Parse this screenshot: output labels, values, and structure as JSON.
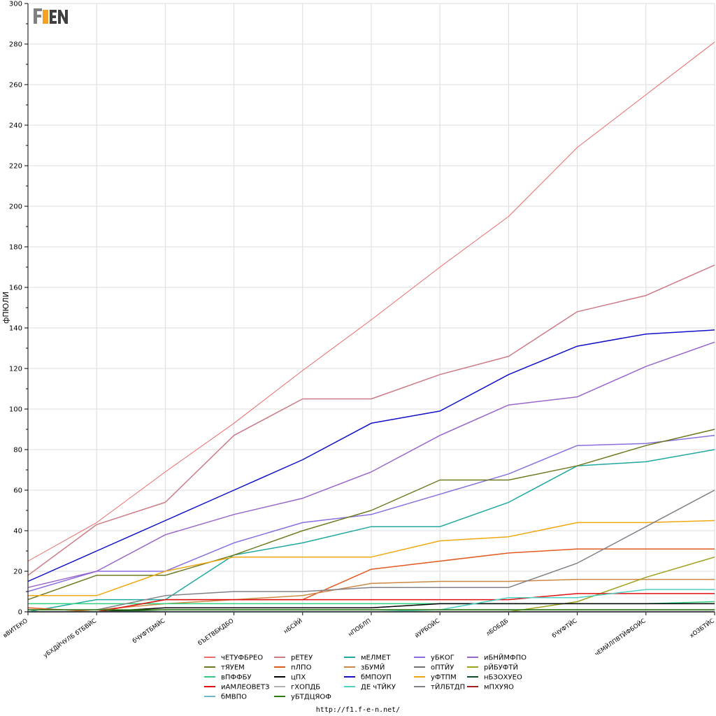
{
  "logo": {
    "text": "F1EN",
    "colors": [
      "#808080",
      "#f5a020",
      "#404040"
    ]
  },
  "footer": {
    "url": "http://f1.f-e-n.net/"
  },
  "chart_data": {
    "type": "line",
    "ylabel": "фПЮЛИ",
    "xlabel": "",
    "title": "",
    "ylim": [
      0,
      300
    ],
    "yticks": [
      0,
      20,
      40,
      60,
      80,
      100,
      120,
      140,
      160,
      180,
      200,
      220,
      240,
      260,
      280,
      300
    ],
    "grid": true,
    "legend_position": "bottom",
    "categories": [
      "вВИТЕКО",
      "уБХДЙЧУЛБ бТБВЙС",
      "бЧУФТБМЙС",
      "бЪЕТВБКДБО",
      "нБСЙЙ",
      "нПОБЛП",
      "йУРБОЙС",
      "лБОБДБ",
      "бЧУФТЙС",
      "чЕМЙЛПВТЙФБОЙС",
      "хОЗБТЙС"
    ],
    "series": [
      {
        "name": "чЕТУФБРЕО",
        "color": "#e86b6b",
        "width": 1,
        "values": [
          25,
          44,
          69,
          93,
          119,
          144,
          170,
          195,
          229,
          255,
          281
        ]
      },
      {
        "name": "рЕТЕУ",
        "color": "#cc7a86",
        "width": 1.5,
        "values": [
          18,
          43,
          54,
          87,
          105,
          105,
          117,
          126,
          148,
          156,
          171
        ]
      },
      {
        "name": "мЕЛМЕТ",
        "color": "#20a8a0",
        "width": 1.5,
        "values": [
          0,
          6,
          6,
          28,
          34,
          42,
          42,
          54,
          72,
          74,
          80
        ]
      },
      {
        "name": "уБКОГ",
        "color": "#8a6ee0",
        "width": 1.5,
        "values": [
          10,
          20,
          20,
          34,
          44,
          48,
          58,
          68,
          82,
          83,
          87
        ]
      },
      {
        "name": "иБНЙМФПО",
        "color": "#9966cc",
        "width": 1.5,
        "values": [
          12,
          20,
          38,
          48,
          56,
          69,
          87,
          102,
          106,
          121,
          133
        ]
      },
      {
        "name": "тЯУЕМ",
        "color": "#6f7a20",
        "width": 1.5,
        "values": [
          6,
          18,
          18,
          28,
          40,
          50,
          65,
          65,
          72,
          82,
          90
        ]
      },
      {
        "name": "пЛПО",
        "color": "#e05a20",
        "width": 1.5,
        "values": [
          2,
          0,
          6,
          6,
          6,
          21,
          25,
          29,
          31,
          31,
          31
        ]
      },
      {
        "name": "зБУМЙ",
        "color": "#cc8844",
        "width": 1.5,
        "values": [
          1,
          1,
          4,
          6,
          8,
          14,
          15,
          15,
          16,
          16,
          16
        ]
      },
      {
        "name": "оПТЙУ",
        "color": "#707070",
        "width": 1.5,
        "values": [
          0,
          0,
          0,
          0,
          0,
          0,
          0,
          0,
          0,
          0,
          0
        ]
      },
      {
        "name": "рЙБУФТЙ",
        "color": "#a0a020",
        "width": 1.5,
        "values": [
          0,
          0,
          0,
          0,
          0,
          0,
          0,
          0,
          5,
          17,
          27
        ]
      },
      {
        "name": "вПФФБУ",
        "color": "#30d080",
        "width": 1.5,
        "values": [
          4,
          4,
          4,
          4,
          4,
          4,
          4,
          4,
          4,
          4,
          5
        ]
      },
      {
        "name": "цПХ",
        "color": "#000000",
        "width": 1.5,
        "values": [
          0,
          0,
          2,
          2,
          2,
          2,
          4,
          4,
          4,
          4,
          4
        ]
      },
      {
        "name": "бМПОУП",
        "color": "#1010c8",
        "width": 1.5,
        "values": [
          15,
          30,
          45,
          60,
          75,
          93,
          99,
          117,
          131,
          137,
          139
        ]
      },
      {
        "name": "уФТПМ",
        "color": "#f0a810",
        "width": 1.5,
        "values": [
          8,
          8,
          20,
          27,
          27,
          27,
          35,
          37,
          44,
          44,
          45
        ]
      },
      {
        "name": "нБЗОХУЕО",
        "color": "#105020",
        "width": 1.5,
        "values": [
          0,
          0,
          1,
          1,
          1,
          1,
          1,
          1,
          1,
          1,
          1
        ]
      },
      {
        "name": "иАМЛЕОВЕТЗ",
        "color": "#e01010",
        "width": 1.5,
        "values": [
          0,
          0,
          6,
          6,
          6,
          6,
          6,
          6,
          9,
          9,
          9
        ]
      },
      {
        "name": "гХОПДБ",
        "color": "#b0b0b0",
        "width": 1.5,
        "values": [
          0,
          0,
          0,
          0,
          0,
          0,
          0,
          0,
          0,
          0,
          0
        ]
      },
      {
        "name": "ДЕ чТЙКУ",
        "color": "#50d0c0",
        "width": 1.5,
        "values": [
          0,
          0,
          0,
          0,
          0,
          0,
          1,
          7,
          7,
          11,
          11
        ]
      },
      {
        "name": "тЙЛБТДП",
        "color": "#808088",
        "width": 1.5,
        "values": [
          1,
          1,
          8,
          10,
          10,
          12,
          12,
          12,
          24,
          42,
          60
        ]
      },
      {
        "name": "мПХУЯО",
        "color": "#a02020",
        "width": 1.5,
        "values": [
          0,
          0,
          0,
          0,
          0,
          0,
          0,
          0,
          0,
          0,
          0
        ]
      },
      {
        "name": "бМВПО",
        "color": "#70b8c8",
        "width": 1.5,
        "values": [
          0,
          0,
          0,
          0,
          0,
          0,
          0,
          0,
          0,
          0,
          0
        ]
      },
      {
        "name": "уБТДЦЯОФ",
        "color": "#2a7a10",
        "width": 1.5,
        "values": [
          1,
          1,
          1,
          1,
          1,
          1,
          1,
          1,
          1,
          1,
          1
        ]
      }
    ],
    "legend_columns": [
      [
        "чЕТУФБРЕО",
        "тЯУЕМ",
        "вПФФБУ",
        "иАМЛЕОВЕТЗ",
        "бМВПО"
      ],
      [
        "рЕТЕУ",
        "пЛПО",
        "цПХ",
        "гХОПДБ",
        "уБТДЦЯОФ"
      ],
      [
        "мЕЛМЕТ",
        "зБУМЙ",
        "бМПОУП",
        "ДЕ чТЙКУ"
      ],
      [
        "уБКОГ",
        "оПТЙУ",
        "уФТПМ",
        "тЙЛБТДП"
      ],
      [
        "иБНЙМФПО",
        "рЙБУФТЙ",
        "нБЗОХУЕО",
        "мПХУЯО"
      ]
    ]
  }
}
